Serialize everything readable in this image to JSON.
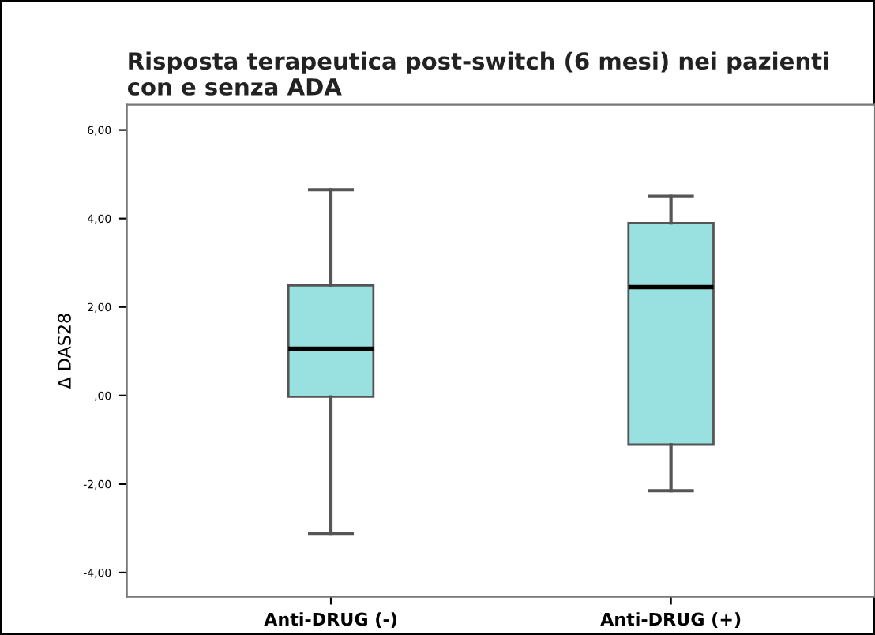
{
  "chart_data": {
    "type": "box",
    "title": "Risposta terapeutica post-switch (6 mesi) nei pazienti con e senza ADA",
    "ylabel": "Δ DAS28",
    "categories": [
      "Anti-DRUG (-)",
      "Anti-DRUG (+)"
    ],
    "boxes": [
      {
        "low": -3.13,
        "q1": -0.03,
        "median": 1.06,
        "q3": 2.49,
        "high": 4.65
      },
      {
        "low": -2.15,
        "q1": -1.11,
        "median": 2.45,
        "q3": 3.9,
        "high": 4.5
      }
    ],
    "color": "#99e0e0",
    "ylim": [
      -4.55,
      6.57
    ],
    "yticks": [
      {
        "value": -4,
        "label": "-4,00"
      },
      {
        "value": -2,
        "label": "-2,00"
      },
      {
        "value": 0,
        "label": ",00"
      },
      {
        "value": 2,
        "label": "2,00"
      },
      {
        "value": 4,
        "label": "4,00"
      },
      {
        "value": 6,
        "label": "6,00"
      }
    ],
    "grid": false
  }
}
